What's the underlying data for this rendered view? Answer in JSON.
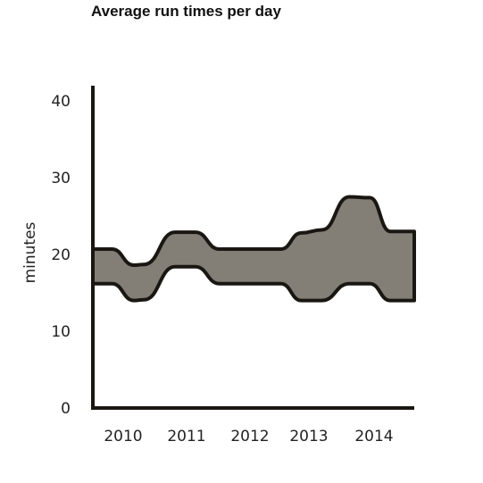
{
  "chart_data": {
    "type": "area",
    "title": "Average run times per day",
    "xlabel": "",
    "ylabel": "minutes",
    "ylim": [
      0,
      42
    ],
    "y_ticks": [
      0,
      10,
      20,
      30,
      40
    ],
    "x_tick_labels": [
      "2010",
      "2011",
      "2012",
      "2013",
      "2014"
    ],
    "grid": false,
    "x": [
      2009.7,
      2009.98,
      2010.3,
      2010.45,
      2010.9,
      2011.2,
      2011.55,
      2012.0,
      2012.45,
      2012.75,
      2013.05,
      2013.45,
      2013.75,
      2014.05,
      2014.4
    ],
    "series": [
      {
        "values_upper": [
          20.7,
          20.7,
          18.6,
          18.7,
          22.9,
          22.9,
          20.7,
          20.7,
          20.7,
          22.8,
          23.2,
          27.5,
          27.4,
          23.0,
          23.0
        ]
      },
      {
        "values_lower": [
          16.2,
          16.2,
          14.0,
          14.1,
          18.4,
          18.4,
          16.2,
          16.2,
          16.2,
          14.0,
          14.0,
          16.2,
          16.2,
          14.0,
          14.0
        ]
      }
    ],
    "colors": {
      "fill": "#837f76",
      "stroke": "#1a1713",
      "axis": "#1a1713"
    }
  }
}
